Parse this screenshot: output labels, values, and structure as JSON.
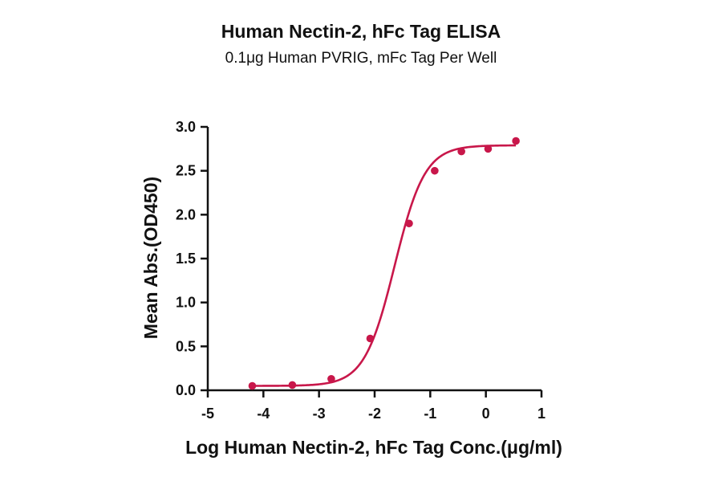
{
  "chart_data": {
    "type": "scatter",
    "title": "Human Nectin-2, hFc Tag ELISA",
    "subtitle": "0.1μg Human PVRIG, mFc Tag Per Well",
    "xlabel": "Log Human Nectin-2, hFc Tag Conc.(μg/ml)",
    "ylabel": "Mean Abs.(OD450)",
    "xlim": [
      -5,
      1
    ],
    "ylim": [
      0,
      3.0
    ],
    "x_ticks": [
      -5,
      -4,
      -3,
      -2,
      -1,
      0,
      1
    ],
    "x_tick_labels": [
      "-5",
      "-4",
      "-3",
      "-2",
      "-1",
      "0",
      "1"
    ],
    "y_ticks": [
      0,
      0.5,
      1.0,
      1.5,
      2.0,
      2.5,
      3.0
    ],
    "y_tick_labels": [
      "0.0",
      "0.5",
      "1.0",
      "1.5",
      "2.0",
      "2.5",
      "3.0"
    ],
    "grid": false,
    "legend": "none",
    "color": "#c8174a",
    "series": [
      {
        "x": [
          -4.2,
          -3.48,
          -2.78,
          -2.08,
          -1.38,
          -0.92,
          -0.44,
          0.04,
          0.54
        ],
        "y": [
          0.05,
          0.06,
          0.13,
          0.59,
          1.9,
          2.5,
          2.72,
          2.75,
          2.84
        ]
      }
    ],
    "fit_curve": {
      "model": "4PL",
      "bottom": 0.05,
      "top": 2.79,
      "log_ec50": -1.64,
      "hill_slope": 1.6
    }
  }
}
